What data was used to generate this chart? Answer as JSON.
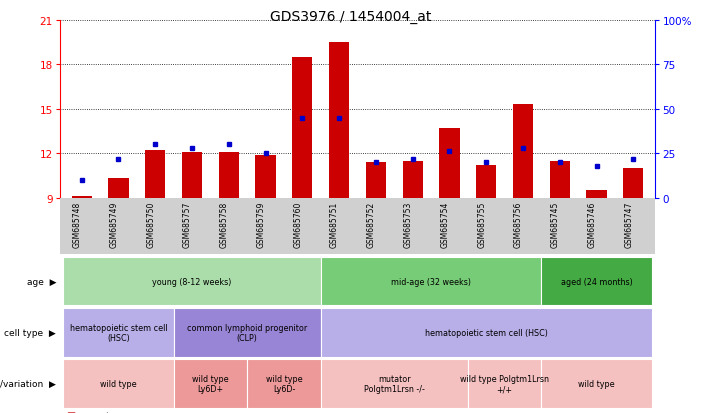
{
  "title": "GDS3976 / 1454004_at",
  "samples": [
    "GSM685748",
    "GSM685749",
    "GSM685750",
    "GSM685757",
    "GSM685758",
    "GSM685759",
    "GSM685760",
    "GSM685751",
    "GSM685752",
    "GSM685753",
    "GSM685754",
    "GSM685755",
    "GSM685756",
    "GSM685745",
    "GSM685746",
    "GSM685747"
  ],
  "counts": [
    9.1,
    10.3,
    12.2,
    12.1,
    12.1,
    11.9,
    18.5,
    19.5,
    11.4,
    11.5,
    13.7,
    11.2,
    15.3,
    11.5,
    9.5,
    11.0
  ],
  "percentiles": [
    10,
    22,
    30,
    28,
    30,
    25,
    45,
    45,
    20,
    22,
    26,
    20,
    28,
    20,
    18,
    22
  ],
  "y_min": 9,
  "y_max": 21,
  "y_ticks_left": [
    9,
    12,
    15,
    18,
    21
  ],
  "y_ticks_right": [
    0,
    25,
    50,
    75,
    100
  ],
  "bar_color": "#cc0000",
  "dot_color": "#0000cc",
  "age_groups": [
    {
      "label": "young (8-12 weeks)",
      "start": 0,
      "end": 7,
      "color": "#aaddaa"
    },
    {
      "label": "mid-age (32 weeks)",
      "start": 7,
      "end": 13,
      "color": "#77cc77"
    },
    {
      "label": "aged (24 months)",
      "start": 13,
      "end": 16,
      "color": "#44aa44"
    }
  ],
  "cell_type_groups": [
    {
      "label": "hematopoietic stem cell\n(HSC)",
      "start": 0,
      "end": 3,
      "color": "#b8aee8"
    },
    {
      "label": "common lymphoid progenitor\n(CLP)",
      "start": 3,
      "end": 7,
      "color": "#9985d5"
    },
    {
      "label": "hematopoietic stem cell (HSC)",
      "start": 7,
      "end": 16,
      "color": "#b8aee8"
    }
  ],
  "genotype_groups": [
    {
      "label": "wild type",
      "start": 0,
      "end": 3,
      "color": "#f5c0c0"
    },
    {
      "label": "wild type\nLy6D+",
      "start": 3,
      "end": 5,
      "color": "#ee9999"
    },
    {
      "label": "wild type\nLy6D-",
      "start": 5,
      "end": 7,
      "color": "#ee9999"
    },
    {
      "label": "mutator\nPolgtm1Lrsn -/-",
      "start": 7,
      "end": 11,
      "color": "#f5c0c0"
    },
    {
      "label": "wild type Polgtm1Lrsn\n+/+",
      "start": 11,
      "end": 13,
      "color": "#f5c0c0"
    },
    {
      "label": "wild type",
      "start": 13,
      "end": 16,
      "color": "#f5c0c0"
    }
  ],
  "legend_count_color": "#cc0000",
  "legend_percentile_color": "#0000cc",
  "background_color": "#ffffff"
}
